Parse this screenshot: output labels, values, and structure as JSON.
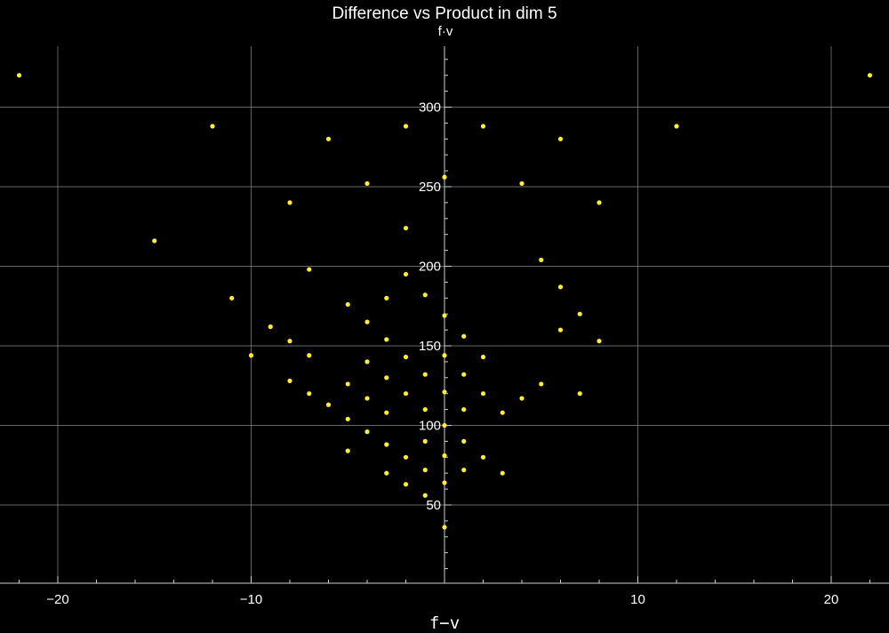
{
  "chart_data": {
    "type": "scatter",
    "title": "Difference vs Product in dim 5",
    "xlabel": "f−v",
    "ylabel": "f·v",
    "xlim": [
      -22,
      22
    ],
    "ylim": [
      0,
      340
    ],
    "x_ticks": [
      -20,
      -10,
      10,
      20
    ],
    "x_tick_labels": [
      "−20",
      "−10",
      "10",
      "20"
    ],
    "y_ticks": [
      50,
      100,
      150,
      200,
      250,
      300
    ],
    "y_tick_labels": [
      "50",
      "100",
      "150",
      "200",
      "250",
      "300"
    ],
    "grid": true,
    "background_color": "#000000",
    "text_color": "#ffffff",
    "grid_color": "#8a8a8a",
    "marker_color": "#ffee33",
    "series": [
      {
        "points": [
          [
            -22,
            320
          ],
          [
            22,
            320
          ],
          [
            -12,
            288
          ],
          [
            12,
            288
          ],
          [
            -2,
            288
          ],
          [
            2,
            288
          ],
          [
            -6,
            280
          ],
          [
            6,
            280
          ],
          [
            -4,
            252
          ],
          [
            4,
            252
          ],
          [
            0,
            256
          ],
          [
            -8,
            240
          ],
          [
            8,
            240
          ],
          [
            -2,
            224
          ],
          [
            -15,
            216
          ],
          [
            5,
            204
          ],
          [
            -7,
            198
          ],
          [
            -2,
            195
          ],
          [
            -11,
            180
          ],
          [
            -3,
            180
          ],
          [
            -1,
            182
          ],
          [
            -5,
            176
          ],
          [
            6,
            187
          ],
          [
            7,
            170
          ],
          [
            0,
            169
          ],
          [
            -4,
            165
          ],
          [
            -9,
            162
          ],
          [
            6,
            160
          ],
          [
            1,
            156
          ],
          [
            -3,
            154
          ],
          [
            -8,
            153
          ],
          [
            8,
            153
          ],
          [
            -10,
            144
          ],
          [
            -7,
            144
          ],
          [
            -2,
            143
          ],
          [
            0,
            144
          ],
          [
            2,
            143
          ],
          [
            -4,
            140
          ],
          [
            -8,
            128
          ],
          [
            -5,
            126
          ],
          [
            -3,
            130
          ],
          [
            -1,
            132
          ],
          [
            1,
            132
          ],
          [
            5,
            126
          ],
          [
            -7,
            120
          ],
          [
            -2,
            120
          ],
          [
            0,
            121
          ],
          [
            2,
            120
          ],
          [
            7,
            120
          ],
          [
            -4,
            117
          ],
          [
            4,
            117
          ],
          [
            -6,
            113
          ],
          [
            -1,
            110
          ],
          [
            1,
            110
          ],
          [
            -3,
            108
          ],
          [
            3,
            108
          ],
          [
            -5,
            104
          ],
          [
            0,
            100
          ],
          [
            -4,
            96
          ],
          [
            -3,
            88
          ],
          [
            -1,
            90
          ],
          [
            1,
            90
          ],
          [
            -5,
            84
          ],
          [
            -2,
            80
          ],
          [
            0,
            81
          ],
          [
            2,
            80
          ],
          [
            -3,
            70
          ],
          [
            -1,
            72
          ],
          [
            1,
            72
          ],
          [
            3,
            70
          ],
          [
            -2,
            63
          ],
          [
            0,
            64
          ],
          [
            -1,
            56
          ],
          [
            0,
            36
          ]
        ]
      }
    ]
  }
}
